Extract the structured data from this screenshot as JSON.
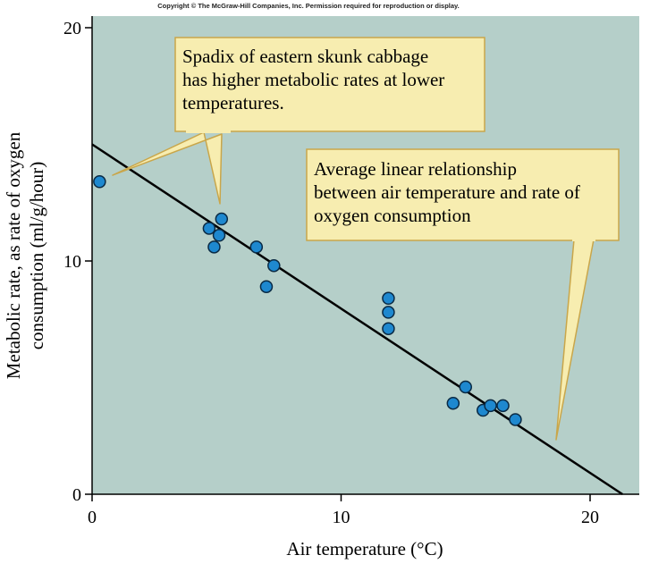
{
  "copyright": "Copyright © The McGraw-Hill Companies, Inc. Permission required for reproduction or display.",
  "colors": {
    "plot_background": "#b5cfc9",
    "marker_fill": "#1e88cf",
    "marker_stroke": "#0a2a44",
    "callout_fill": "#f7edb0",
    "callout_stroke": "#c9a64a",
    "axis": "#000000"
  },
  "callouts": {
    "spadix": [
      "Spadix of eastern skunk cabbage",
      "has higher metabolic rates at lower",
      "temperatures."
    ],
    "linear": [
      "Average linear relationship",
      "between air temperature and rate of",
      "oxygen consumption"
    ]
  },
  "chart_data": {
    "type": "scatter",
    "title": "",
    "xlabel": "Air temperature (°C)",
    "ylabel_lines": [
      "Metabolic rate, as rate of oxygen",
      "consumption (ml/g/hour)"
    ],
    "xlim": [
      0,
      22
    ],
    "ylim": [
      0,
      20
    ],
    "x_ticks": [
      0,
      10,
      20
    ],
    "y_ticks": [
      0,
      10,
      20
    ],
    "grid": false,
    "points": [
      {
        "x": 0.3,
        "y": 13.4
      },
      {
        "x": 4.7,
        "y": 11.4
      },
      {
        "x": 4.9,
        "y": 10.6
      },
      {
        "x": 5.1,
        "y": 11.1
      },
      {
        "x": 5.2,
        "y": 11.8
      },
      {
        "x": 6.6,
        "y": 10.6
      },
      {
        "x": 7.0,
        "y": 8.9
      },
      {
        "x": 7.3,
        "y": 9.8
      },
      {
        "x": 11.9,
        "y": 8.4
      },
      {
        "x": 11.9,
        "y": 7.8
      },
      {
        "x": 11.9,
        "y": 7.1
      },
      {
        "x": 14.5,
        "y": 3.9
      },
      {
        "x": 15.0,
        "y": 4.6
      },
      {
        "x": 15.7,
        "y": 3.6
      },
      {
        "x": 16.0,
        "y": 3.8
      },
      {
        "x": 16.5,
        "y": 3.8
      },
      {
        "x": 17.0,
        "y": 3.2
      }
    ],
    "trend_line": {
      "x1": 0,
      "y1": 15.0,
      "x2": 21.3,
      "y2": 0
    }
  }
}
